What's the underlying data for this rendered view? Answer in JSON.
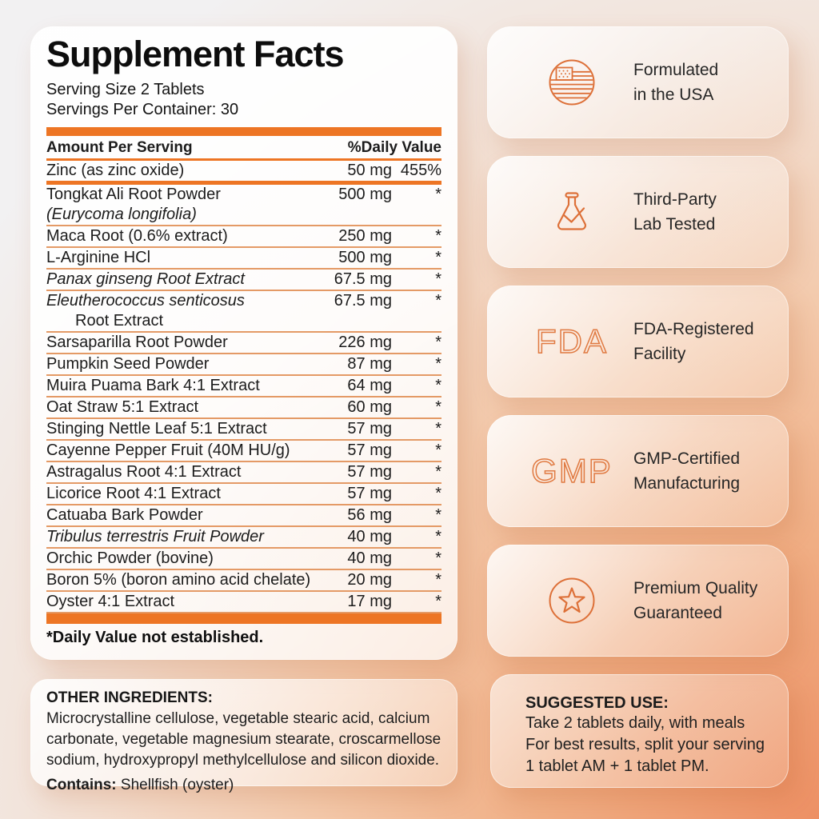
{
  "colors": {
    "accent_bar": "#ED7524",
    "separator": "#E49A66",
    "icon_stroke": "#DD7038",
    "background_corner": "#ED9064"
  },
  "supplement_panel": {
    "title": "Supplement Facts",
    "serving_size": "Serving Size 2 Tablets",
    "servings_per_container": "Servings Per Container: 30",
    "columns": {
      "amount": "Amount Per Serving",
      "daily_value": "%Daily Value"
    },
    "rows": [
      {
        "name": "Zinc (as zinc oxide)",
        "amount": "50 mg",
        "dv": "455%",
        "thick_divider": true
      },
      {
        "name": "Tongkat Ali Root Powder",
        "line2": "(Eurycoma longifolia)",
        "line2_italic": true,
        "amount": "500 mg",
        "dv": "*"
      },
      {
        "name": "Maca Root (0.6% extract)",
        "amount": "250 mg",
        "dv": "*"
      },
      {
        "name": "L-Arginine HCl",
        "amount": "500 mg",
        "dv": "*"
      },
      {
        "name": "Panax ginseng Root Extract",
        "italic": true,
        "amount": "67.5 mg",
        "dv": "*"
      },
      {
        "name": "Eleutherococcus senticosus",
        "italic": true,
        "line2": "Root Extract",
        "line2_indent": true,
        "amount": "67.5 mg",
        "dv": "*"
      },
      {
        "name": "Sarsaparilla Root Powder",
        "amount": "226 mg",
        "dv": "*"
      },
      {
        "name": "Pumpkin Seed Powder",
        "amount": "87 mg",
        "dv": "*"
      },
      {
        "name": "Muira Puama Bark 4:1 Extract",
        "amount": "64 mg",
        "dv": "*"
      },
      {
        "name": "Oat Straw 5:1 Extract",
        "amount": "60 mg",
        "dv": "*"
      },
      {
        "name": "Stinging Nettle Leaf 5:1 Extract",
        "amount": "57 mg",
        "dv": "*"
      },
      {
        "name": "Cayenne Pepper Fruit (40M HU/g)",
        "amount": "57 mg",
        "dv": "*"
      },
      {
        "name": "Astragalus Root 4:1 Extract",
        "amount": "57 mg",
        "dv": "*"
      },
      {
        "name": "Licorice Root 4:1 Extract",
        "amount": "57 mg",
        "dv": "*"
      },
      {
        "name": "Catuaba Bark Powder",
        "amount": "56 mg",
        "dv": "*"
      },
      {
        "name": "Tribulus terrestris Fruit Powder",
        "italic": true,
        "amount": "40 mg",
        "dv": "*"
      },
      {
        "name": "Orchic Powder (bovine)",
        "amount": "40 mg",
        "dv": "*"
      },
      {
        "name": "Boron 5% (boron amino acid chelate)",
        "amount": "20 mg",
        "dv": "*"
      },
      {
        "name": "Oyster 4:1 Extract",
        "amount": "17 mg",
        "dv": "*"
      }
    ],
    "footnote": "*Daily Value not established."
  },
  "badges": [
    {
      "icon": "usa-flag-icon",
      "line1": "Formulated",
      "line2": "in the USA"
    },
    {
      "icon": "lab-flask-icon",
      "line1": "Third-Party",
      "line2": "Lab Tested"
    },
    {
      "icon": "fda-text-icon",
      "icon_text": "FDA",
      "line1": "FDA-Registered",
      "line2": "Facility"
    },
    {
      "icon": "gmp-text-icon",
      "icon_text": "GMP",
      "line1": "GMP-Certified",
      "line2": "Manufacturing"
    },
    {
      "icon": "star-icon",
      "line1": "Premium Quality",
      "line2": "Guaranteed"
    }
  ],
  "other_ingredients": {
    "heading": "OTHER INGREDIENTS:",
    "body": "Microcrystalline cellulose, vegetable stearic acid, calcium carbonate, vegetable magnesium stearate, croscarmellose sodium, hydroxypropyl methylcellulose and silicon dioxide.",
    "contains_label": "Contains:",
    "contains_value": "Shellfish (oyster)"
  },
  "suggested_use": {
    "heading": "SUGGESTED USE:",
    "lines": [
      "Take 2 tablets daily, with meals",
      "For best results, split your serving",
      "1 tablet AM + 1 tablet PM."
    ]
  }
}
